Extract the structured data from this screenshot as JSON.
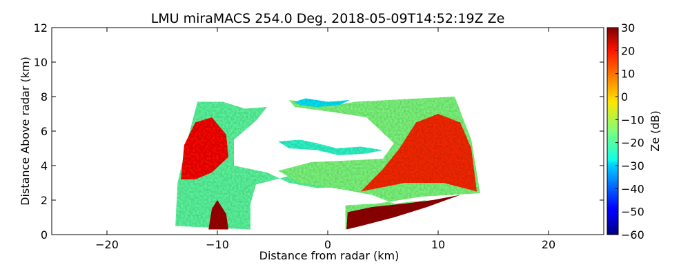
{
  "chart_data": {
    "type": "heatmap",
    "title": "LMU miraMACS 254.0 Deg. 2018-05-09T14:52:19Z  Ze",
    "xlabel": "Distance from radar (km)",
    "ylabel": "Distance Above radar  (km)",
    "xlim": [
      -25,
      25
    ],
    "ylim": [
      0,
      12
    ],
    "x_ticks": [
      -20,
      -10,
      0,
      10,
      20
    ],
    "y_ticks": [
      0,
      2,
      4,
      6,
      8,
      10,
      12
    ],
    "colorbar": {
      "label": "Ze (dB)",
      "range": [
        -60,
        30
      ],
      "ticks": [
        -60,
        -50,
        -40,
        -30,
        -20,
        -10,
        0,
        10,
        20,
        30
      ],
      "colormap": "jet"
    },
    "grid": false,
    "regions": [
      {
        "polygon": [
          [
            -13.8,
            0.5
          ],
          [
            -13.6,
            3.0
          ],
          [
            -12.7,
            5.5
          ],
          [
            -11.8,
            7.7
          ],
          [
            -9.5,
            7.7
          ],
          [
            -7.5,
            7.3
          ],
          [
            -5.5,
            7.4
          ],
          [
            -6.5,
            6.6
          ],
          [
            -8.5,
            5.5
          ],
          [
            -8.5,
            4.0
          ],
          [
            -5.5,
            3.6
          ],
          [
            -3.5,
            3.0
          ],
          [
            -1.0,
            2.7
          ],
          [
            3.0,
            2.8
          ],
          [
            6.0,
            3.2
          ],
          [
            5.0,
            4.2
          ],
          [
            2.5,
            4.0
          ],
          [
            0.5,
            3.8
          ],
          [
            -3.5,
            3.4
          ],
          [
            -6.5,
            2.9
          ],
          [
            -7.0,
            1.8
          ],
          [
            -7.0,
            0.3
          ],
          [
            -10.5,
            0.4
          ]
        ],
        "value": -18
      },
      {
        "polygon": [
          [
            1.6,
            0.3
          ],
          [
            1.6,
            1.7
          ],
          [
            4.5,
            1.8
          ],
          [
            8.5,
            2.2
          ],
          [
            13.8,
            2.4
          ],
          [
            13.0,
            5.5
          ],
          [
            11.5,
            8.0
          ],
          [
            8.5,
            7.9
          ],
          [
            5.5,
            7.8
          ],
          [
            2.5,
            7.7
          ],
          [
            0.5,
            7.5
          ],
          [
            -3.5,
            7.8
          ],
          [
            -3.0,
            7.4
          ],
          [
            0.5,
            7.1
          ],
          [
            3.5,
            6.8
          ],
          [
            6.0,
            5.3
          ],
          [
            5.0,
            4.4
          ],
          [
            2.0,
            4.3
          ],
          [
            -1.5,
            4.2
          ],
          [
            -4.5,
            3.7
          ],
          [
            -2.5,
            3.0
          ],
          [
            1.5,
            2.6
          ],
          [
            4.0,
            2.3
          ],
          [
            6.0,
            1.8
          ],
          [
            9.0,
            2.0
          ]
        ],
        "value": -15
      },
      {
        "polygon": [
          [
            -13.3,
            3.2
          ],
          [
            -13.0,
            5.2
          ],
          [
            -12.0,
            6.5
          ],
          [
            -10.5,
            6.8
          ],
          [
            -9.2,
            5.8
          ],
          [
            -9.0,
            4.5
          ],
          [
            -10.5,
            3.6
          ],
          [
            -12.0,
            3.2
          ]
        ],
        "value": 18
      },
      {
        "polygon": [
          [
            3.0,
            2.5
          ],
          [
            7.0,
            3.0
          ],
          [
            10.5,
            3.0
          ],
          [
            13.5,
            2.5
          ],
          [
            13.0,
            5.0
          ],
          [
            12.0,
            6.5
          ],
          [
            10.0,
            7.0
          ],
          [
            8.0,
            6.5
          ],
          [
            6.5,
            5.0
          ],
          [
            5.0,
            3.8
          ]
        ],
        "value": 15
      },
      {
        "polygon": [
          [
            -10.8,
            0.3
          ],
          [
            -10.5,
            1.5
          ],
          [
            -10.0,
            2.0
          ],
          [
            -9.2,
            1.2
          ],
          [
            -9.0,
            0.3
          ]
        ],
        "value": 27
      },
      {
        "polygon": [
          [
            1.7,
            0.3
          ],
          [
            1.8,
            1.3
          ],
          [
            4.0,
            1.6
          ],
          [
            7.0,
            1.8
          ],
          [
            9.5,
            2.0
          ],
          [
            12.0,
            2.3
          ],
          [
            9.0,
            1.6
          ],
          [
            6.0,
            1.0
          ],
          [
            3.0,
            0.5
          ]
        ],
        "value": 28
      },
      {
        "polygon": [
          [
            -4.5,
            5.4
          ],
          [
            -2.5,
            5.5
          ],
          [
            -1.0,
            5.3
          ],
          [
            0.8,
            5.0
          ],
          [
            3.0,
            5.1
          ],
          [
            5.0,
            4.9
          ],
          [
            3.5,
            4.7
          ],
          [
            1.0,
            4.6
          ],
          [
            -1.0,
            4.9
          ],
          [
            -3.5,
            5.0
          ]
        ],
        "value": -22
      },
      {
        "polygon": [
          [
            -3.0,
            7.7
          ],
          [
            -2.0,
            7.9
          ],
          [
            0.0,
            7.7
          ],
          [
            2.0,
            7.8
          ],
          [
            1.0,
            7.5
          ],
          [
            -1.0,
            7.4
          ],
          [
            -2.5,
            7.5
          ]
        ],
        "value": -28
      }
    ]
  }
}
